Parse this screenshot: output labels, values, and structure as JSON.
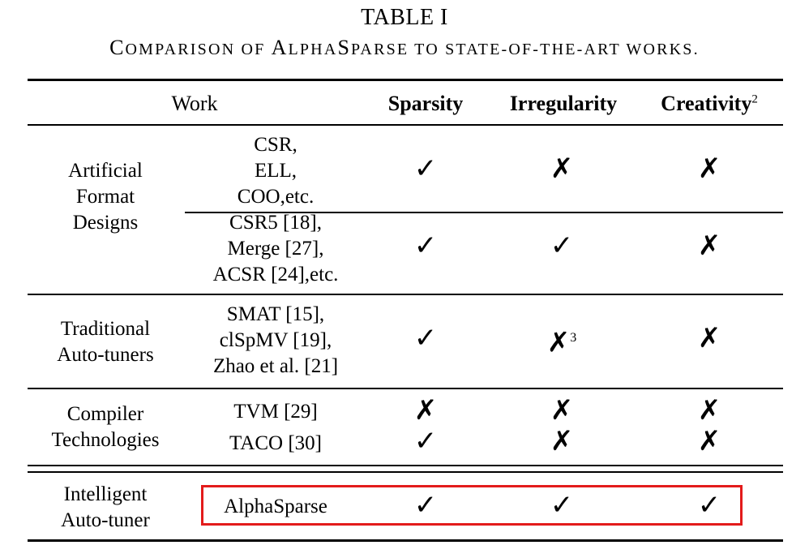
{
  "table_label": "TABLE I",
  "caption": {
    "c1": "C",
    "s1": "OMPARISON OF ",
    "c2": "A",
    "s2": "LPHA",
    "c3": "S",
    "s3": "PARSE TO STATE-OF-THE-ART WORKS."
  },
  "header": {
    "work": "Work",
    "sparsity": "Sparsity",
    "irregularity": "Irregularity",
    "creativity": "Creativity",
    "creativity_sup": "2"
  },
  "groups": [
    {
      "name": [
        "Artificial",
        "Format",
        "Designs"
      ],
      "rows": [
        {
          "works": [
            "CSR,",
            "ELL,",
            "COO,etc."
          ],
          "sparsity": "✓",
          "irregularity": "✗",
          "creativity": "✗"
        },
        {
          "works": [
            "CSR5 [18],",
            "Merge [27],",
            "ACSR [24],etc."
          ],
          "sparsity": "✓",
          "irregularity": "✓",
          "creativity": "✗"
        }
      ]
    },
    {
      "name": [
        "Traditional",
        "Auto-tuners"
      ],
      "rows": [
        {
          "works": [
            "SMAT [15],",
            "clSpMV [19],",
            "Zhao et al. [21]"
          ],
          "sparsity": "✓",
          "irregularity": "✗",
          "irregularity_sup": "3",
          "creativity": "✗"
        }
      ]
    },
    {
      "name": [
        "Compiler",
        "Technologies"
      ],
      "rows": [
        {
          "works": [
            "TVM [29]"
          ],
          "sparsity": "✗",
          "irregularity": "✗",
          "creativity": "✗"
        },
        {
          "works": [
            "TACO [30]"
          ],
          "sparsity": "✓",
          "irregularity": "✗",
          "creativity": "✗"
        }
      ]
    },
    {
      "name": [
        "Intelligent",
        "Auto-tuner"
      ],
      "rows": [
        {
          "works": [
            "AlphaSparse"
          ],
          "sparsity": "✓",
          "irregularity": "✓",
          "creativity": "✓"
        }
      ]
    }
  ]
}
